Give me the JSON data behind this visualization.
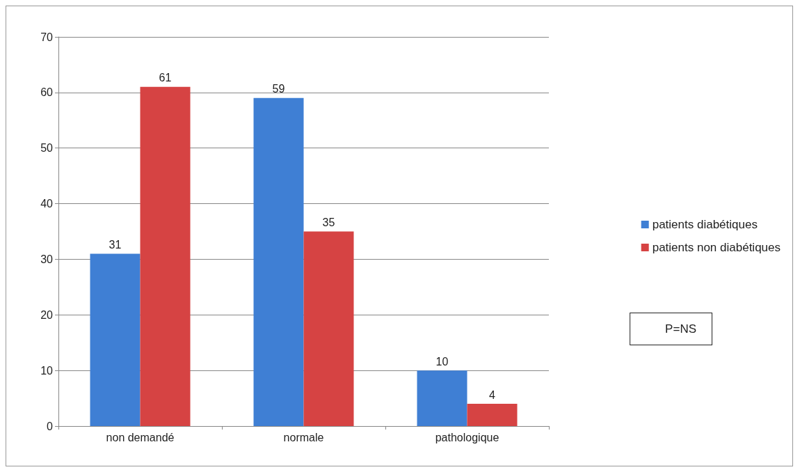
{
  "chart_data": {
    "type": "bar",
    "categories": [
      "non demandé",
      "normale",
      "pathologique"
    ],
    "series": [
      {
        "name": "patients diabétiques",
        "color": "#3f7fd4",
        "values": [
          31,
          59,
          10
        ]
      },
      {
        "name": "patients non diabétiques",
        "color": "#d64343",
        "values": [
          61,
          35,
          4
        ]
      }
    ],
    "ylim": [
      0,
      70
    ],
    "yticks": [
      0,
      10,
      20,
      30,
      40,
      50,
      60,
      70
    ],
    "grid": "y",
    "legend": "right",
    "data_labels": true,
    "annotations": [
      "P=NS"
    ]
  }
}
